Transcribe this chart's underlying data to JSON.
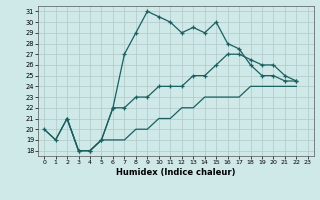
{
  "xlabel": "Humidex (Indice chaleur)",
  "background_color": "#cfe8e8",
  "grid_color": "#b0c8c8",
  "line_color": "#1a6060",
  "xlim": [
    -0.5,
    23.5
  ],
  "ylim": [
    17.5,
    31.5
  ],
  "xticks": [
    0,
    1,
    2,
    3,
    4,
    5,
    6,
    7,
    8,
    9,
    10,
    11,
    12,
    13,
    14,
    15,
    16,
    17,
    18,
    19,
    20,
    21,
    22,
    23
  ],
  "yticks": [
    18,
    19,
    20,
    21,
    22,
    23,
    24,
    25,
    26,
    27,
    28,
    29,
    30,
    31
  ],
  "series1_x": [
    0,
    1,
    2,
    3,
    4,
    5,
    6,
    7,
    8,
    9,
    10,
    11,
    12,
    13,
    14,
    15,
    16,
    17,
    18,
    19,
    20,
    21,
    22
  ],
  "series1_y": [
    20,
    19,
    21,
    18,
    18,
    19,
    22,
    27,
    29,
    31,
    30.5,
    30,
    29,
    29.5,
    29,
    30,
    28,
    27.5,
    26,
    25,
    25,
    24.5,
    24.5
  ],
  "series2_x": [
    2,
    3,
    4,
    5,
    6,
    7,
    8,
    9,
    10,
    11,
    12,
    13,
    14,
    15,
    16,
    17,
    18,
    19,
    20,
    21,
    22
  ],
  "series2_y": [
    21,
    18,
    18,
    19,
    22,
    22,
    23,
    23,
    24,
    24,
    24,
    25,
    25,
    26,
    27,
    27,
    26.5,
    26,
    26,
    25,
    24.5
  ],
  "series3_x": [
    0,
    1,
    2,
    3,
    4,
    5,
    6,
    7,
    8,
    9,
    10,
    11,
    12,
    13,
    14,
    15,
    16,
    17,
    18,
    19,
    20,
    21,
    22
  ],
  "series3_y": [
    20,
    19,
    21,
    18,
    18,
    19,
    19,
    19,
    20,
    20,
    21,
    21,
    22,
    22,
    23,
    23,
    23,
    23,
    24,
    24,
    24,
    24,
    24
  ]
}
